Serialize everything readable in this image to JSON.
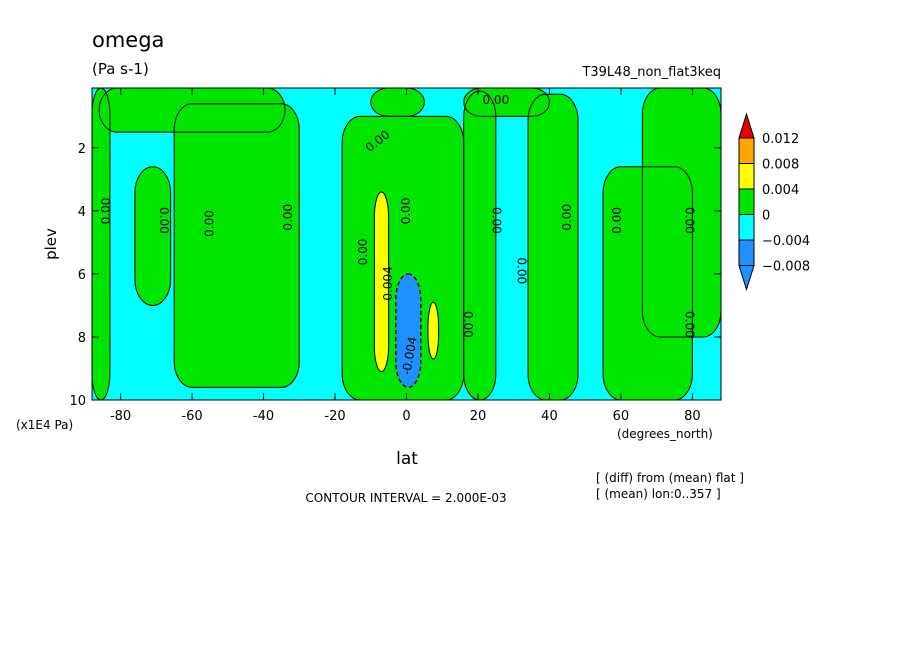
{
  "title": "omega",
  "units": "(Pa s-1)",
  "experiment": "T39L48_non_flat3keq",
  "colors": {
    "cyan": "#00ffff",
    "green": "#00e600",
    "yellow": "#ffff00",
    "orange": "#ffa500",
    "red": "#e60000",
    "blue": "#1e90ff",
    "line": "#000000"
  },
  "chart_data": {
    "type": "heatmap",
    "xlabel": "lat",
    "x_unit_label": "(degrees_north)",
    "ylabel": "plev",
    "y_unit_label": "(x1E4 Pa)",
    "xlim": [
      -88,
      88
    ],
    "ylim": [
      10,
      0.1
    ],
    "x_ticks": [
      -80,
      -60,
      -40,
      -20,
      0,
      20,
      40,
      60,
      80
    ],
    "x_tick_labels": [
      "-80",
      "-60",
      "-40",
      "-20",
      "0",
      "20",
      "40",
      "60",
      "80"
    ],
    "y_ticks": [
      2,
      4,
      6,
      8,
      10
    ],
    "y_tick_labels": [
      "2",
      "4",
      "6",
      "8",
      "10"
    ],
    "contour_interval_text": "CONTOUR INTERVAL = 2.000E-03",
    "legend": {
      "placement": "right",
      "levels": [
        "0.012",
        "0.008",
        "0.004",
        "0",
        "−0.004",
        "−0.008"
      ],
      "bins": [
        {
          "range": "above 0.012",
          "color": "#e60000"
        },
        {
          "range": "0.008 to 0.012",
          "color": "#ffa500"
        },
        {
          "range": "0.004 to 0.008",
          "color": "#ffff00"
        },
        {
          "range": "0 to 0.004",
          "color": "#00e600"
        },
        {
          "range": "-0.004 to 0",
          "color": "#00ffff"
        },
        {
          "range": "-0.008 to -0.004",
          "color": "#1e90ff"
        },
        {
          "range": "below -0.008",
          "color": "#1e90ff"
        }
      ]
    },
    "regions": [
      {
        "id": "green-left-edge",
        "sign": "positive",
        "lat_range": [
          -88,
          -83
        ],
        "plev_range": [
          0.1,
          10
        ],
        "color": "#00e600"
      },
      {
        "id": "green-top-left",
        "sign": "positive",
        "lat_range": [
          -86,
          -34
        ],
        "plev_range": [
          0.1,
          1.5
        ],
        "color": "#00e600"
      },
      {
        "id": "green-col-70S",
        "sign": "positive",
        "lat_range": [
          -76,
          -66
        ],
        "plev_range": [
          2.6,
          7.0
        ],
        "color": "#00e600"
      },
      {
        "id": "green-col-55S",
        "sign": "positive",
        "lat_range": [
          -65,
          -30
        ],
        "plev_range": [
          0.6,
          9.6
        ],
        "color": "#00e600"
      },
      {
        "id": "green-top-mid",
        "sign": "positive",
        "lat_range": [
          -10,
          5
        ],
        "plev_range": [
          0.1,
          1.0
        ],
        "color": "#00e600"
      },
      {
        "id": "green-equatorial",
        "sign": "positive",
        "lat_range": [
          -18,
          16
        ],
        "plev_range": [
          1.0,
          10
        ],
        "color": "#00e600"
      },
      {
        "id": "green-top-right",
        "sign": "positive",
        "lat_range": [
          16,
          40
        ],
        "plev_range": [
          0.1,
          1.0
        ],
        "color": "#00e600"
      },
      {
        "id": "green-col-20N",
        "sign": "positive",
        "lat_range": [
          16,
          25
        ],
        "plev_range": [
          0.2,
          10
        ],
        "color": "#00e600"
      },
      {
        "id": "green-col-40N",
        "sign": "positive",
        "lat_range": [
          34,
          48
        ],
        "plev_range": [
          0.3,
          10
        ],
        "color": "#00e600"
      },
      {
        "id": "green-col-70N",
        "sign": "positive",
        "lat_range": [
          55,
          80
        ],
        "plev_range": [
          2.6,
          10
        ],
        "color": "#00e600"
      },
      {
        "id": "green-right-edge",
        "sign": "positive",
        "lat_range": [
          66,
          88
        ],
        "plev_range": [
          0.1,
          8.0
        ],
        "color": "#00e600"
      },
      {
        "id": "yellow-7S",
        "sign": "positive",
        "lat_range": [
          -9,
          -5
        ],
        "plev_range": [
          3.4,
          9.1
        ],
        "color": "#ffff00"
      },
      {
        "id": "yellow-8N",
        "sign": "positive",
        "lat_range": [
          6,
          9
        ],
        "plev_range": [
          6.9,
          8.7
        ],
        "color": "#ffff00"
      },
      {
        "id": "blue-equator",
        "sign": "negative",
        "lat_range": [
          -3,
          4
        ],
        "plev_range": [
          6.0,
          9.6
        ],
        "color": "#1e90ff"
      }
    ],
    "contour_labels": [
      {
        "text": "0.00",
        "lat": -84,
        "plev": 4.0,
        "rotation": -90
      },
      {
        "text": "0.00",
        "lat": -68,
        "plev": 4.3,
        "rotation": 90
      },
      {
        "text": "0.00",
        "lat": -55,
        "plev": 4.4,
        "rotation": -90
      },
      {
        "text": "0.00",
        "lat": -33,
        "plev": 4.2,
        "rotation": -90
      },
      {
        "text": "0.00",
        "lat": -8,
        "plev": 1.8,
        "rotation": -38
      },
      {
        "text": "0.00",
        "lat": 25,
        "plev": 0.5,
        "rotation": 0
      },
      {
        "text": "0.00",
        "lat": -12,
        "plev": 5.3,
        "rotation": -90
      },
      {
        "text": "0.004",
        "lat": -5,
        "plev": 6.3,
        "rotation": -90
      },
      {
        "text": "0.00",
        "lat": 0,
        "plev": 4.0,
        "rotation": -90
      },
      {
        "text": "-0.004",
        "lat": 1,
        "plev": 8.6,
        "rotation": -80
      },
      {
        "text": "0.00",
        "lat": 17,
        "plev": 7.6,
        "rotation": 90
      },
      {
        "text": "0.00",
        "lat": 25,
        "plev": 4.3,
        "rotation": 90
      },
      {
        "text": "0.00",
        "lat": 32,
        "plev": 5.9,
        "rotation": 90
      },
      {
        "text": "0.00",
        "lat": 45,
        "plev": 4.2,
        "rotation": -90
      },
      {
        "text": "0.00",
        "lat": 59,
        "plev": 4.3,
        "rotation": -90
      },
      {
        "text": "0.00",
        "lat": 79,
        "plev": 4.3,
        "rotation": 90
      },
      {
        "text": "0.00",
        "lat": 79,
        "plev": 7.6,
        "rotation": 90
      }
    ]
  },
  "notes": {
    "diff": "[ (diff) from (mean) flat ]",
    "mean": "[ (mean) lon:0..357 ]"
  }
}
